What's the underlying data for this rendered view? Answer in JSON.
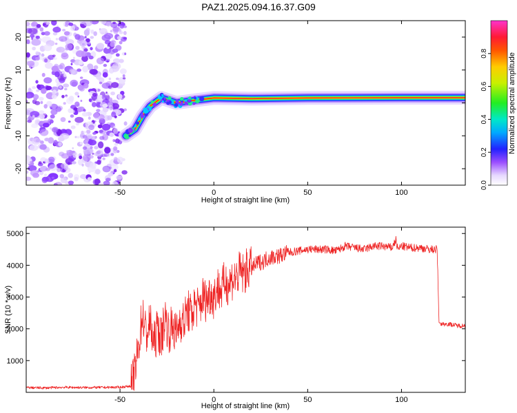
{
  "title": "PAZ1.2025.094.16.37.G09",
  "chart_data": [
    {
      "type": "heatmap",
      "xlabel": "Height of straight line (km)",
      "ylabel": "Frequency (Hz)",
      "xlim": [
        -100,
        134
      ],
      "ylim": [
        -25,
        25
      ],
      "xticks": [
        -50,
        0,
        50,
        100
      ],
      "yticks": [
        -20,
        -10,
        0,
        10,
        20
      ],
      "colorbar": {
        "label": "Normalized spectral amplitude",
        "range": [
          0,
          1
        ],
        "ticks": [
          0.0,
          0.2,
          0.4,
          0.6,
          0.8
        ]
      },
      "ridge": [
        {
          "x": -47,
          "y": -10
        },
        {
          "x": -42,
          "y": -8
        },
        {
          "x": -38,
          "y": -4
        },
        {
          "x": -34,
          "y": -1
        },
        {
          "x": -28,
          "y": 1.5
        },
        {
          "x": -20,
          "y": 0
        },
        {
          "x": -10,
          "y": 0.8
        },
        {
          "x": 0,
          "y": 1.5
        },
        {
          "x": 20,
          "y": 1.3
        },
        {
          "x": 50,
          "y": 1.5
        },
        {
          "x": 100,
          "y": 1.6
        },
        {
          "x": 134,
          "y": 1.6
        }
      ],
      "noise_region": {
        "x_from": -100,
        "x_to": -47
      }
    },
    {
      "type": "line",
      "xlabel": "Height of straight line (km)",
      "ylabel": "SNR (10 * v/v)",
      "xlim": [
        -100,
        134
      ],
      "ylim": [
        0,
        5200
      ],
      "xticks": [
        -50,
        0,
        50,
        100
      ],
      "yticks": [
        1000,
        2000,
        3000,
        4000,
        5000
      ],
      "color": "#ee2222",
      "series": [
        {
          "x": [
            -100,
            -90,
            -80,
            -70,
            -60,
            -50,
            -44,
            -42,
            -40,
            -38,
            -36,
            -34,
            -32,
            -30,
            -28,
            -26,
            -24,
            -22,
            -20,
            -18,
            -16,
            -14,
            -12,
            -10,
            -8,
            -6,
            -4,
            -2,
            0,
            2,
            4,
            6,
            8,
            10,
            12,
            14,
            16,
            18,
            20,
            22,
            24,
            26,
            28,
            30,
            35,
            40,
            45,
            50,
            55,
            60,
            65,
            70,
            75,
            80,
            85,
            90,
            95,
            97,
            98,
            100,
            105,
            110,
            115,
            119,
            120,
            121,
            125,
            130,
            134
          ],
          "y": [
            150,
            140,
            160,
            150,
            155,
            160,
            200,
            600,
            1500,
            2500,
            1800,
            2200,
            1500,
            2000,
            1700,
            2400,
            1900,
            2100,
            1800,
            2300,
            2200,
            2600,
            2400,
            2800,
            2600,
            3000,
            2900,
            3100,
            3000,
            3300,
            3200,
            3500,
            3400,
            3600,
            3600,
            3800,
            3700,
            3900,
            3900,
            4000,
            4100,
            4100,
            4200,
            4250,
            4300,
            4400,
            4450,
            4500,
            4500,
            4500,
            4450,
            4600,
            4550,
            4500,
            4600,
            4600,
            4550,
            4800,
            4500,
            4600,
            4550,
            4550,
            4500,
            4500,
            2200,
            2150,
            2150,
            2100,
            2100
          ]
        }
      ]
    }
  ]
}
